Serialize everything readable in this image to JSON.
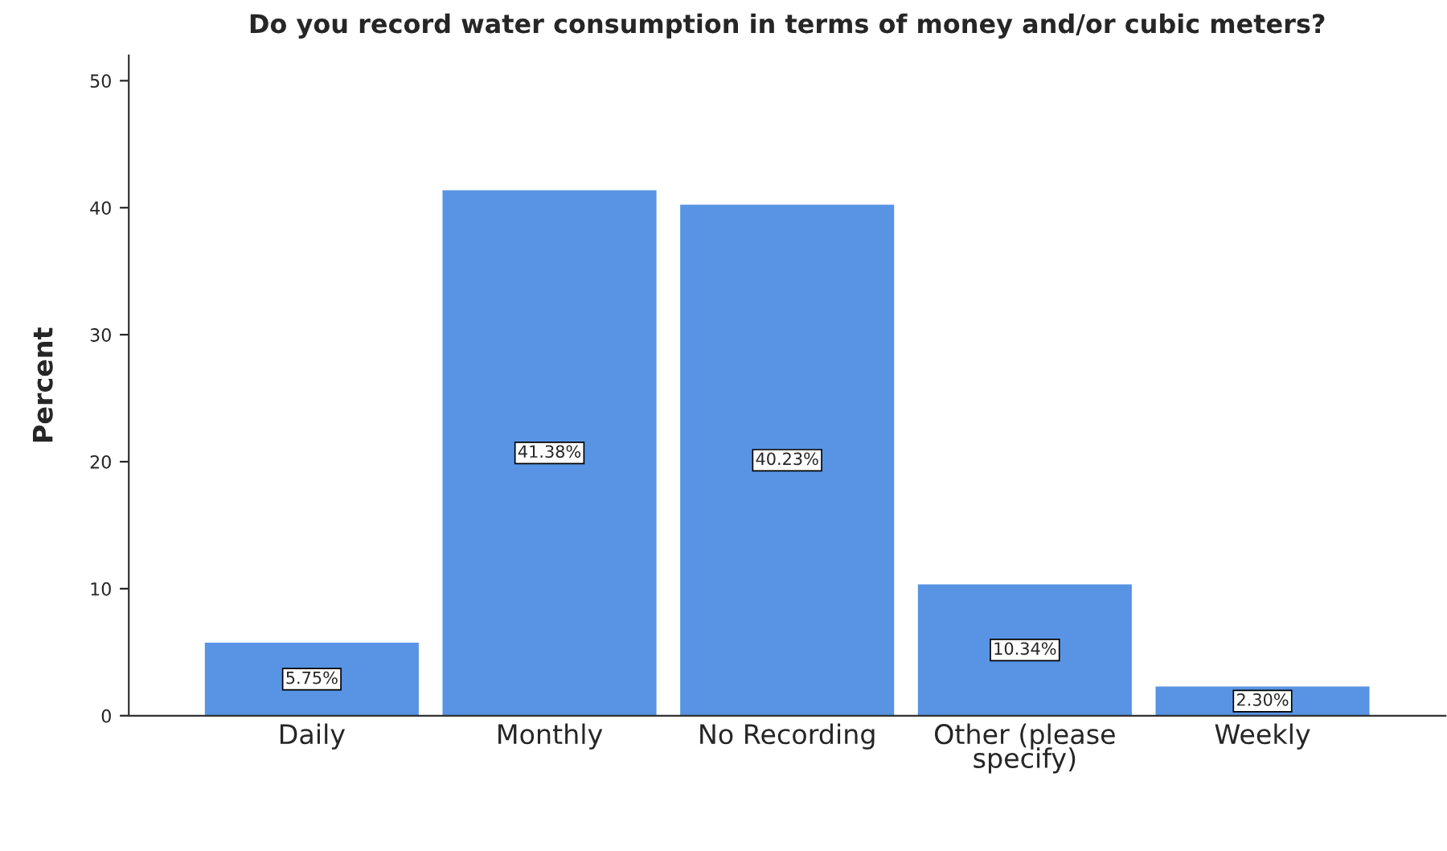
{
  "chart_data": {
    "type": "bar",
    "title": "Do you record water consumption in terms of money and/or cubic meters?",
    "ylabel": "Percent",
    "categories": [
      "Daily",
      "Monthly",
      "No Recording",
      "Other (please\nspecify)",
      "Weekly"
    ],
    "values": [
      5.75,
      41.38,
      40.23,
      10.34,
      2.3
    ],
    "value_labels": [
      "5.75%",
      "41.38%",
      "40.23%",
      "10.34%",
      "2.30%"
    ],
    "color": "#5894e3",
    "ylim": [
      0,
      52
    ],
    "yticks": [
      0,
      10,
      20,
      30,
      40,
      50
    ],
    "grid": false,
    "legend": false
  }
}
